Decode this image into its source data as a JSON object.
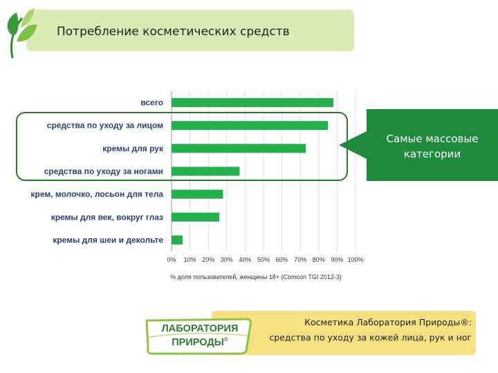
{
  "header": {
    "title": "Потребление косметических средств"
  },
  "callout": {
    "line1": "Самые массовые",
    "line2": "категории"
  },
  "bottom": {
    "line1": "Косметика Лаборатория Природы®:",
    "line2": "средства по уходу за кожей лица, рук и ног"
  },
  "logo": {
    "line1": "ЛАБОРАТОРИЯ",
    "line2": "ПРИРОДЫ",
    "mark": "®"
  },
  "colors": {
    "bar": "#22b14c",
    "title_bg": "#d8edb3",
    "callout": "#1e8a3c",
    "bottom_bg": "#f6e07f",
    "outline": "#2a7a2a"
  },
  "chart_data": {
    "type": "bar",
    "orientation": "horizontal",
    "categories": [
      "всего",
      "средства по уходу за лицом",
      "кремы для рук",
      "средства по уходу за ногами",
      "крем, молочко, лосьон для тела",
      "кремы для век, вокруг глаз",
      "кремы для шеи и декольте"
    ],
    "values": [
      88,
      85,
      73,
      37,
      28,
      26,
      6
    ],
    "xlim": [
      0,
      100
    ],
    "xticks": [
      "0%",
      "10%",
      "20%",
      "30%",
      "40%",
      "50%",
      "60%",
      "70%",
      "80%",
      "90%",
      "100%"
    ],
    "xlabel": "% доля пользователей, женщины 18+ (Comcon TGI 2012-3)",
    "grid": true,
    "highlighted_categories": [
      1,
      2,
      3
    ]
  }
}
